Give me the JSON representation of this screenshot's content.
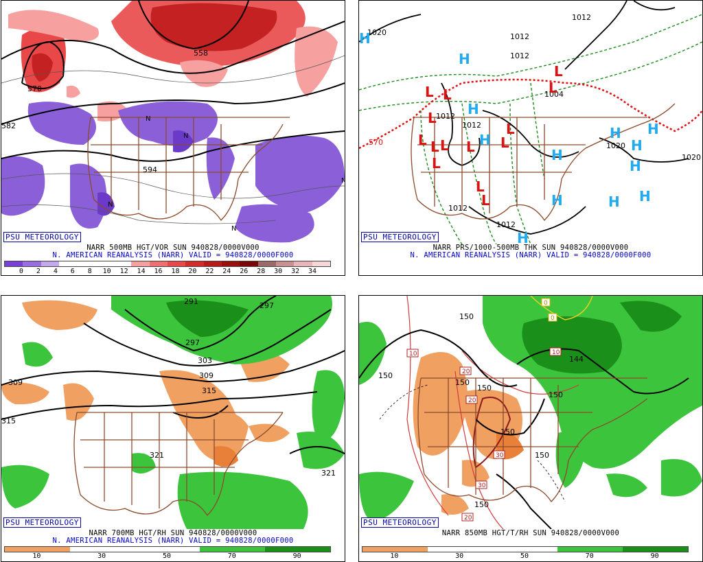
{
  "panels": [
    {
      "psu": "PSU METEOROLOGY",
      "title": "NARR 500MB HGT/VOR SUN 940828/0000V000",
      "subtitle": "N. AMERICAN REANALYSIS (NARR) VALID = 940828/0000F000",
      "contour_labels": [
        "558",
        "570",
        "582",
        "594"
      ],
      "colorbar": {
        "ticks": [
          "0",
          "2",
          "4",
          "6",
          "8",
          "10",
          "12",
          "14",
          "16",
          "18",
          "20",
          "22",
          "24",
          "26",
          "28",
          "30",
          "32",
          "34"
        ],
        "colors": [
          "#7a3fd6",
          "#9a6ee0",
          "#c2a9ec",
          "#ffffff",
          "#ffffff",
          "#ffffff",
          "#ffffff",
          "#f7a0a0",
          "#ef7070",
          "#e84848",
          "#d42a2a",
          "#b81a1a",
          "#9a0e0e",
          "#7a0606",
          "#9c6868",
          "#c89090",
          "#e8b6b6",
          "#f6d6d6"
        ]
      },
      "markers_N": "N"
    },
    {
      "psu": "PSU METEOROLOGY",
      "title": "NARR PRS/1000-500MB THK SUN 940828/0000V000",
      "subtitle": "N. AMERICAN REANALYSIS (NARR) VALID = 940828/0000F000",
      "isobar_labels": [
        "1020",
        "1012",
        "1012",
        "1012",
        "1004",
        "1012",
        "1012",
        "1020",
        "1020",
        "1012",
        "1012"
      ],
      "thickness_labels": [
        "570"
      ],
      "high_symbol": "H",
      "low_symbol": "L"
    },
    {
      "psu": "PSU METEOROLOGY",
      "title": "NARR 700MB HGT/RH SUN 940828/0000V000",
      "subtitle": "N. AMERICAN REANALYSIS (NARR) VALID = 940828/0000F000",
      "contour_labels": [
        "291",
        "297",
        "297",
        "303",
        "309",
        "309",
        "315",
        "315",
        "321",
        "321"
      ],
      "colorbar": {
        "ticks": [
          "10",
          "30",
          "50",
          "70",
          "90"
        ],
        "colors": [
          "#f0a060",
          "#ffffff",
          "#ffffff",
          "#3cc43c",
          "#1a8f1a"
        ]
      }
    },
    {
      "psu": "PSU METEOROLOGY",
      "title": "NARR 850MB HGT/T/RH SUN 940828/0000V000",
      "contour_labels": [
        "150",
        "150",
        "150",
        "150",
        "150",
        "150",
        "150",
        "150",
        "144"
      ],
      "temp_labels": [
        "10",
        "20",
        "20",
        "30",
        "30",
        "20",
        "10",
        "0",
        "0"
      ],
      "colorbar": {
        "ticks": [
          "10",
          "30",
          "50",
          "70",
          "90"
        ],
        "colors": [
          "#f0a060",
          "#ffffff",
          "#ffffff",
          "#3cc43c",
          "#1a8f1a"
        ]
      }
    }
  ],
  "colors": {
    "psu_text": "#0000aa",
    "subtitle_text": "#0000cc",
    "vort_pos": "#e84848",
    "vort_neg": "#8a5fd8",
    "rh_dry": "#f0a060",
    "rh_wet": "#3cc43c",
    "border_brown": "#8b4a2b",
    "high_blue": "#22aaee",
    "low_red": "#e01010",
    "thickness_green": "#1a8a1a"
  }
}
